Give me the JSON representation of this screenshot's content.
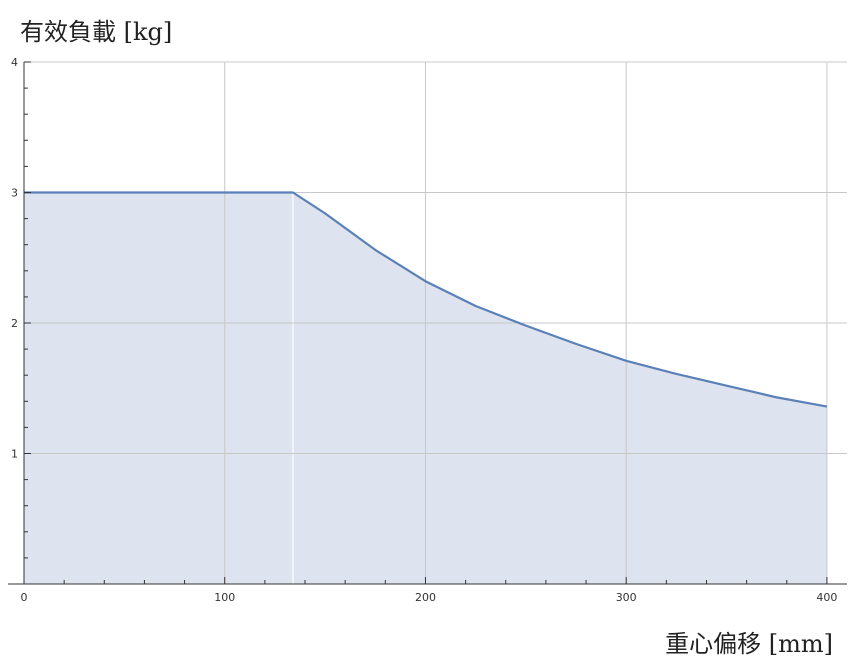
{
  "chart_data": {
    "type": "area",
    "ylabel": "有效負載 [kg]",
    "xlabel": "重心偏移 [mm]",
    "xlim": [
      0,
      410
    ],
    "ylim": [
      0,
      4
    ],
    "x_ticks": [
      0,
      100,
      200,
      300,
      400
    ],
    "y_ticks": [
      1,
      2,
      3,
      4
    ],
    "grid": true,
    "series": [
      {
        "x": [
          0,
          134,
          150,
          175,
          200,
          225,
          250,
          275,
          300,
          325,
          350,
          375,
          400
        ],
        "y": [
          3.0,
          3.0,
          2.84,
          2.56,
          2.32,
          2.13,
          1.98,
          1.84,
          1.71,
          1.61,
          1.52,
          1.43,
          1.36
        ]
      }
    ],
    "colors": {
      "line": "#5b80b8",
      "fill": "#dde3ef",
      "grid": "#c8c8c8",
      "axis": "#333333"
    }
  }
}
